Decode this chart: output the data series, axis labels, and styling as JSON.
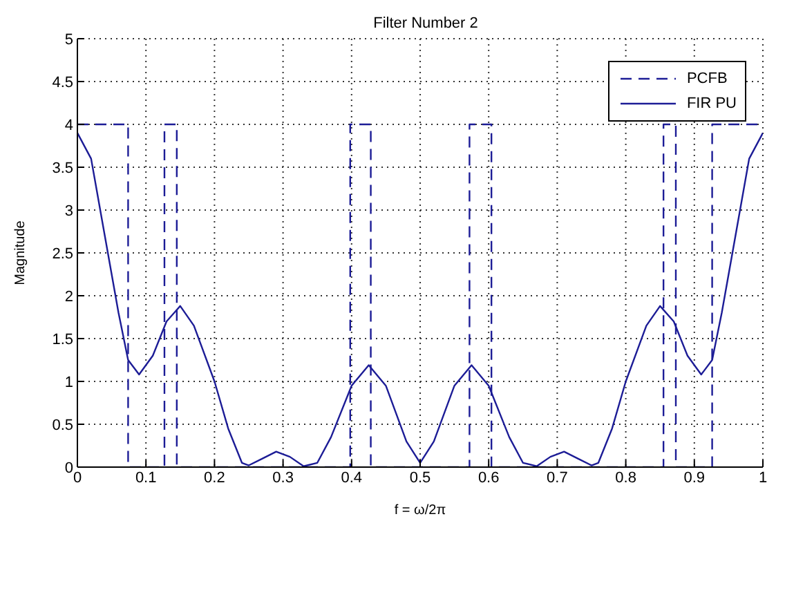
{
  "chart_data": {
    "type": "line",
    "title": "Filter Number 2",
    "xlabel": "f = ω/2π",
    "ylabel": "Magnitude",
    "xlim": [
      0,
      1
    ],
    "xticks": [
      0,
      0.1,
      0.2,
      0.3,
      0.4,
      0.5,
      0.6,
      0.7,
      0.8,
      0.9,
      1
    ],
    "ylim": [
      0,
      5
    ],
    "yticks": [
      0,
      0.5,
      1,
      1.5,
      2,
      2.5,
      3,
      3.5,
      4,
      4.5,
      5
    ],
    "grid": true,
    "legend": "top right",
    "series": [
      {
        "name": "PCFB",
        "color": "#1c1c96",
        "line_style": "dashed",
        "x": [
          0,
          0.074,
          0.074,
          0.127,
          0.127,
          0.145,
          0.145,
          0.398,
          0.398,
          0.428,
          0.428,
          0.572,
          0.572,
          0.604,
          0.604,
          0.855,
          0.855,
          0.873,
          0.873,
          0.926,
          0.926,
          1
        ],
        "values": [
          4,
          4,
          0,
          0,
          4,
          4,
          0,
          0,
          4,
          4,
          0,
          0,
          4,
          4,
          0,
          0,
          4,
          4,
          0,
          0,
          4,
          4
        ]
      },
      {
        "name": "FIR PU",
        "color": "#1c1c96",
        "line_style": "solid",
        "x": [
          0,
          0.02,
          0.04,
          0.06,
          0.074,
          0.09,
          0.11,
          0.13,
          0.15,
          0.17,
          0.2,
          0.22,
          0.24,
          0.25,
          0.27,
          0.29,
          0.31,
          0.33,
          0.35,
          0.37,
          0.4,
          0.425,
          0.45,
          0.48,
          0.5,
          0.52,
          0.55,
          0.575,
          0.6,
          0.63,
          0.65,
          0.67,
          0.69,
          0.71,
          0.73,
          0.75,
          0.76,
          0.78,
          0.8,
          0.83,
          0.85,
          0.87,
          0.89,
          0.91,
          0.926,
          0.94,
          0.96,
          0.98,
          1
        ],
        "values": [
          3.9,
          3.6,
          2.7,
          1.8,
          1.25,
          1.08,
          1.3,
          1.7,
          1.88,
          1.65,
          1.0,
          0.45,
          0.05,
          0.02,
          0.1,
          0.18,
          0.12,
          0.01,
          0.05,
          0.35,
          0.95,
          1.19,
          0.95,
          0.3,
          0.05,
          0.3,
          0.95,
          1.19,
          0.95,
          0.35,
          0.05,
          0.01,
          0.12,
          0.18,
          0.1,
          0.02,
          0.05,
          0.45,
          1.0,
          1.65,
          1.88,
          1.7,
          1.3,
          1.08,
          1.25,
          1.8,
          2.7,
          3.6,
          3.9
        ]
      }
    ]
  }
}
